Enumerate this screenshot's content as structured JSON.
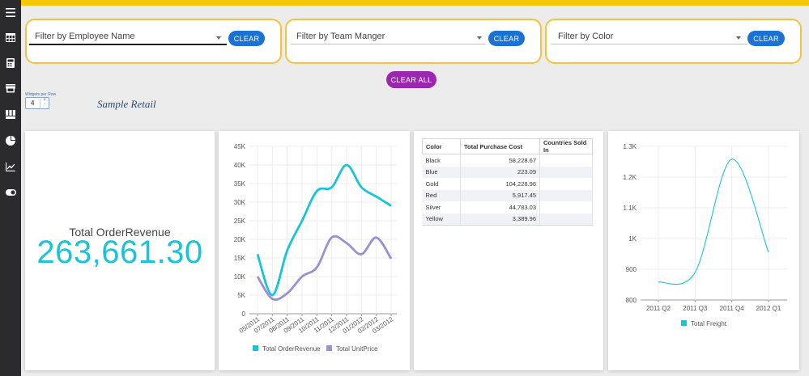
{
  "sidebar": {
    "icons": [
      "menu-icon",
      "table-icon",
      "calculator-icon",
      "store-icon",
      "grid-icon",
      "pie-chart-icon",
      "line-chart-icon",
      "toggle-icon"
    ]
  },
  "filters": [
    {
      "placeholder": "Filter by Employee Name",
      "clear": "CLEAR"
    },
    {
      "placeholder": "Filter by Team Manger",
      "clear": "CLEAR"
    },
    {
      "placeholder": "Filter by Color",
      "clear": "CLEAR"
    }
  ],
  "clear_all": "CLEAR ALL",
  "widgets_per_row": {
    "label": "Widgets per Row",
    "value": "4"
  },
  "dashboard_title": "Sample Retail",
  "kpi": {
    "label": "Total OrderRevenue",
    "value": "263,661.30"
  },
  "table": {
    "headers": [
      "Color",
      "Total Purchase Cost",
      "Countries Sold In"
    ],
    "rows": [
      [
        "Black",
        "58,228.67",
        ""
      ],
      [
        "Blue",
        "223.09",
        ""
      ],
      [
        "Gold",
        "104,228.96",
        ""
      ],
      [
        "Red",
        "5,917.45",
        ""
      ],
      [
        "Silver",
        "44,783.03",
        ""
      ],
      [
        "Yellow",
        "3,389.96",
        ""
      ]
    ]
  },
  "colors": {
    "accent": "#f5c800",
    "cyan": "#18c5d8",
    "purple": "#9b90d0",
    "blue": "#1a73d4",
    "magenta": "#9b27b0"
  },
  "chart_data": [
    {
      "type": "line",
      "categories": [
        "05/2011",
        "07/2011",
        "08/2011",
        "09/2011",
        "10/2011",
        "11/2011",
        "12/2011",
        "01/2012",
        "02/2012",
        "03/2012"
      ],
      "yticks": [
        "0",
        "5K",
        "10K",
        "15K",
        "20K",
        "25K",
        "30K",
        "35K",
        "40K",
        "45K"
      ],
      "ylim": [
        0,
        45000
      ],
      "series": [
        {
          "name": "Total OrderRevenue",
          "color": "#18c5d8",
          "values": [
            16000,
            5000,
            17000,
            25000,
            33000,
            34000,
            40000,
            34000,
            31500,
            29000
          ]
        },
        {
          "name": "Total UnitPrice",
          "color": "#9b90d0",
          "values": [
            10000,
            4000,
            5500,
            10000,
            12500,
            20500,
            19000,
            16000,
            20500,
            14800
          ]
        }
      ],
      "legend": "bottom",
      "grid": true
    },
    {
      "type": "line",
      "categories": [
        "2011 Q2",
        "2011 Q3",
        "2011 Q4",
        "2012 Q1"
      ],
      "yticks": [
        "800",
        "900",
        "1K",
        "1.1K",
        "1.2K",
        "1.3K"
      ],
      "ylim": [
        800,
        1300
      ],
      "series": [
        {
          "name": "Total Freight",
          "color": "#18c5d8",
          "values": [
            858,
            890,
            1258,
            955
          ]
        }
      ],
      "legend": "bottom",
      "grid": true
    }
  ]
}
